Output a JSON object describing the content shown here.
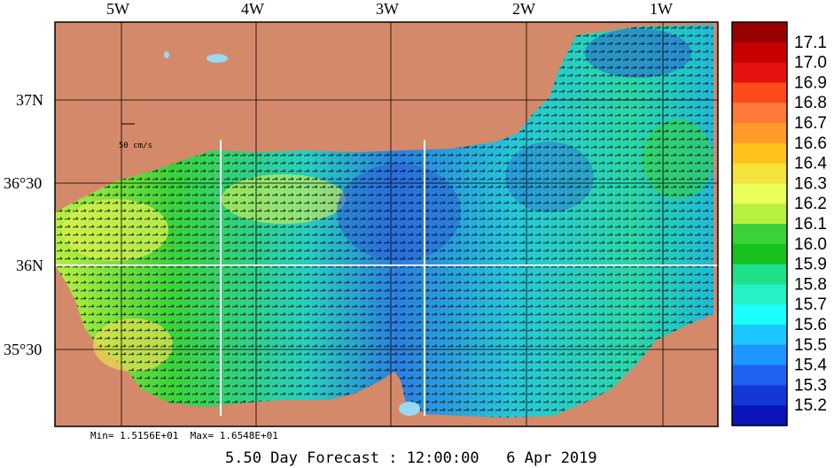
{
  "map": {
    "lon_labels": [
      "5W",
      "4W",
      "3W",
      "2W",
      "1W"
    ],
    "lat_labels": [
      "37N",
      "36°30",
      "36N",
      "35°30"
    ],
    "scale_label": "50 cm/s"
  },
  "colorbar": {
    "labels": [
      "17.1",
      "17.0",
      "16.9",
      "16.8",
      "16.7",
      "16.6",
      "16.4",
      "16.3",
      "16.2",
      "16.1",
      "16.0",
      "15.9",
      "15.8",
      "15.7",
      "15.6",
      "15.5",
      "15.4",
      "15.3",
      "15.2"
    ],
    "colors": [
      "#990000",
      "#c80000",
      "#e61010",
      "#ff4a1a",
      "#ff7a3a",
      "#ff9a28",
      "#ffc21a",
      "#f5e23a",
      "#eaff5a",
      "#b8f040",
      "#3ad23a",
      "#18c21e",
      "#1ee08a",
      "#26f0c6",
      "#1cffff",
      "#1cc6ff",
      "#1e96ff",
      "#1e62f2",
      "#1438d6",
      "#0a14b8"
    ]
  },
  "stats_text": "Min= 1.5156E+01  Max= 1.6548E+01",
  "forecast_text": "5.50 Day Forecast : 12:00:00   6 Apr 2019",
  "colors": {
    "land": "#d4896a",
    "water_mid": "#22b8e0"
  }
}
